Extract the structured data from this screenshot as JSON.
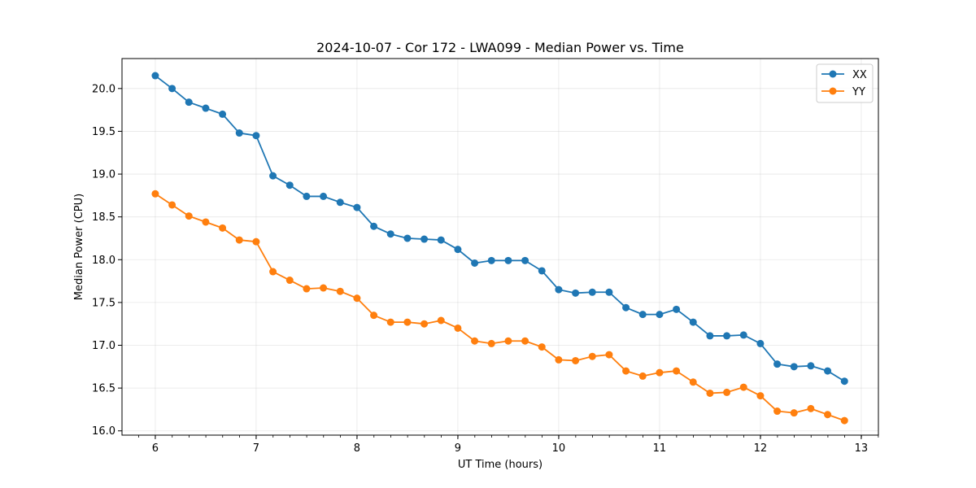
{
  "chart_data": {
    "type": "line",
    "title": "2024-10-07 - Cor 172 - LWA099 - Median Power vs. Time",
    "xlabel": "UT Time (hours)",
    "ylabel": "Median Power (CPU)",
    "xlim": [
      5.67,
      13.17
    ],
    "ylim": [
      15.95,
      20.35
    ],
    "grid": true,
    "legend_position": "top-right",
    "x_ticks": [
      6,
      7,
      8,
      9,
      10,
      11,
      12,
      13
    ],
    "x_tick_labels": [
      "6",
      "7",
      "8",
      "9",
      "10",
      "11",
      "12",
      "13"
    ],
    "x_minor_step": 0.1667,
    "y_ticks": [
      16.0,
      16.5,
      17.0,
      17.5,
      18.0,
      18.5,
      19.0,
      19.5,
      20.0
    ],
    "y_tick_labels": [
      "16.0",
      "16.5",
      "17.0",
      "17.5",
      "18.0",
      "18.5",
      "19.0",
      "19.5",
      "20.0"
    ],
    "x": [
      6.0,
      6.1667,
      6.3333,
      6.5,
      6.6667,
      6.8333,
      7.0,
      7.1667,
      7.3333,
      7.5,
      7.6667,
      7.8333,
      8.0,
      8.1667,
      8.3333,
      8.5,
      8.6667,
      8.8333,
      9.0,
      9.1667,
      9.3333,
      9.5,
      9.6667,
      9.8333,
      10.0,
      10.1667,
      10.3333,
      10.5,
      10.6667,
      10.8333,
      11.0,
      11.1667,
      11.3333,
      11.5,
      11.6667,
      11.8333,
      12.0,
      12.1667,
      12.3333,
      12.5,
      12.6667,
      12.8333
    ],
    "series": [
      {
        "name": "XX",
        "color": "#1f77b4",
        "values": [
          20.15,
          20.0,
          19.84,
          19.77,
          19.7,
          19.48,
          19.45,
          18.98,
          18.87,
          18.74,
          18.74,
          18.67,
          18.61,
          18.39,
          18.3,
          18.25,
          18.24,
          18.23,
          18.12,
          17.96,
          17.99,
          17.99,
          17.99,
          17.87,
          17.65,
          17.61,
          17.62,
          17.62,
          17.44,
          17.36,
          17.36,
          17.42,
          17.27,
          17.11,
          17.11,
          17.12,
          17.02,
          16.78,
          16.75,
          16.76,
          16.7,
          16.58
        ]
      },
      {
        "name": "YY",
        "color": "#ff7f0e",
        "values": [
          18.77,
          18.64,
          18.51,
          18.44,
          18.37,
          18.23,
          18.21,
          17.86,
          17.76,
          17.66,
          17.67,
          17.63,
          17.55,
          17.35,
          17.27,
          17.27,
          17.25,
          17.29,
          17.2,
          17.05,
          17.02,
          17.05,
          17.05,
          16.98,
          16.83,
          16.82,
          16.87,
          16.89,
          16.7,
          16.64,
          16.68,
          16.7,
          16.57,
          16.44,
          16.45,
          16.51,
          16.41,
          16.23,
          16.21,
          16.26,
          16.19,
          16.12
        ]
      }
    ]
  }
}
